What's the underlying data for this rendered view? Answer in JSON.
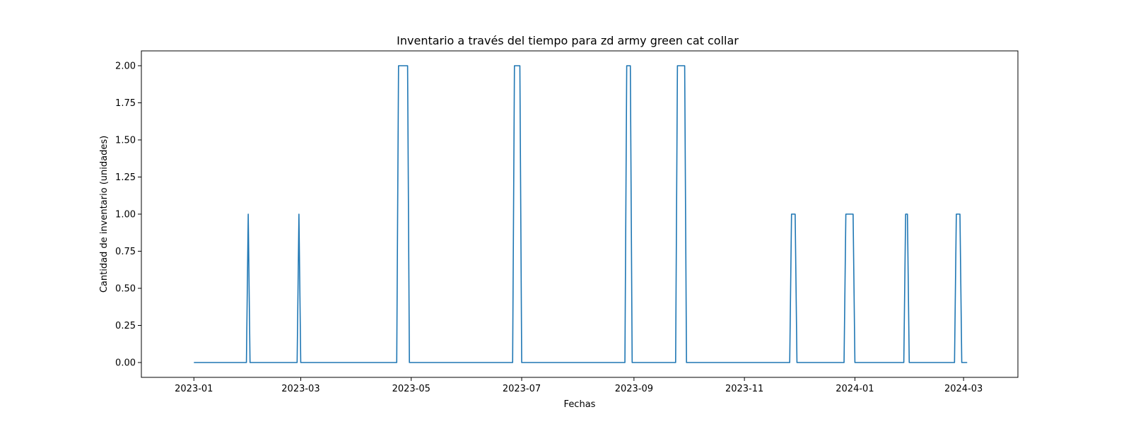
{
  "chart_data": {
    "type": "line",
    "title": "Inventario a través del tiempo para zd army green cat collar",
    "xlabel": "Fechas",
    "ylabel": "Cantidad de inventario (unidades)",
    "xlim": [
      "2022-12-03",
      "2024-03-31"
    ],
    "ylim": [
      -0.1,
      2.1
    ],
    "x_ticks": [
      "2023-01",
      "2023-03",
      "2023-05",
      "2023-07",
      "2023-09",
      "2023-11",
      "2024-01",
      "2024-03"
    ],
    "y_ticks": [
      "0.00",
      "0.25",
      "0.50",
      "0.75",
      "1.00",
      "1.25",
      "1.50",
      "1.75",
      "2.00"
    ],
    "grid": false,
    "line_color": "#1f77b4",
    "series": [
      {
        "x": [
          "2023-01-01",
          "2023-01-30",
          "2023-01-31",
          "2023-02-01",
          "2023-02-27",
          "2023-02-28",
          "2023-03-01",
          "2023-04-23",
          "2023-04-24",
          "2023-04-29",
          "2023-04-30",
          "2023-06-26",
          "2023-06-27",
          "2023-06-30",
          "2023-07-01",
          "2023-08-27",
          "2023-08-28",
          "2023-08-30",
          "2023-08-31",
          "2023-09-24",
          "2023-09-25",
          "2023-09-29",
          "2023-09-30",
          "2023-11-26",
          "2023-11-27",
          "2023-11-29",
          "2023-11-30",
          "2023-12-26",
          "2023-12-27",
          "2023-12-31",
          "2024-01-01",
          "2024-01-28",
          "2024-01-29",
          "2024-01-30",
          "2024-01-31",
          "2024-02-25",
          "2024-02-26",
          "2024-02-28",
          "2024-02-29",
          "2024-03-03"
        ],
        "y": [
          0,
          0,
          1,
          0,
          0,
          1,
          0,
          0,
          2,
          2,
          0,
          0,
          2,
          2,
          0,
          0,
          2,
          2,
          0,
          0,
          2,
          2,
          0,
          0,
          1,
          1,
          0,
          0,
          1,
          1,
          0,
          0,
          1,
          1,
          0,
          0,
          1,
          1,
          0,
          0
        ]
      }
    ]
  }
}
